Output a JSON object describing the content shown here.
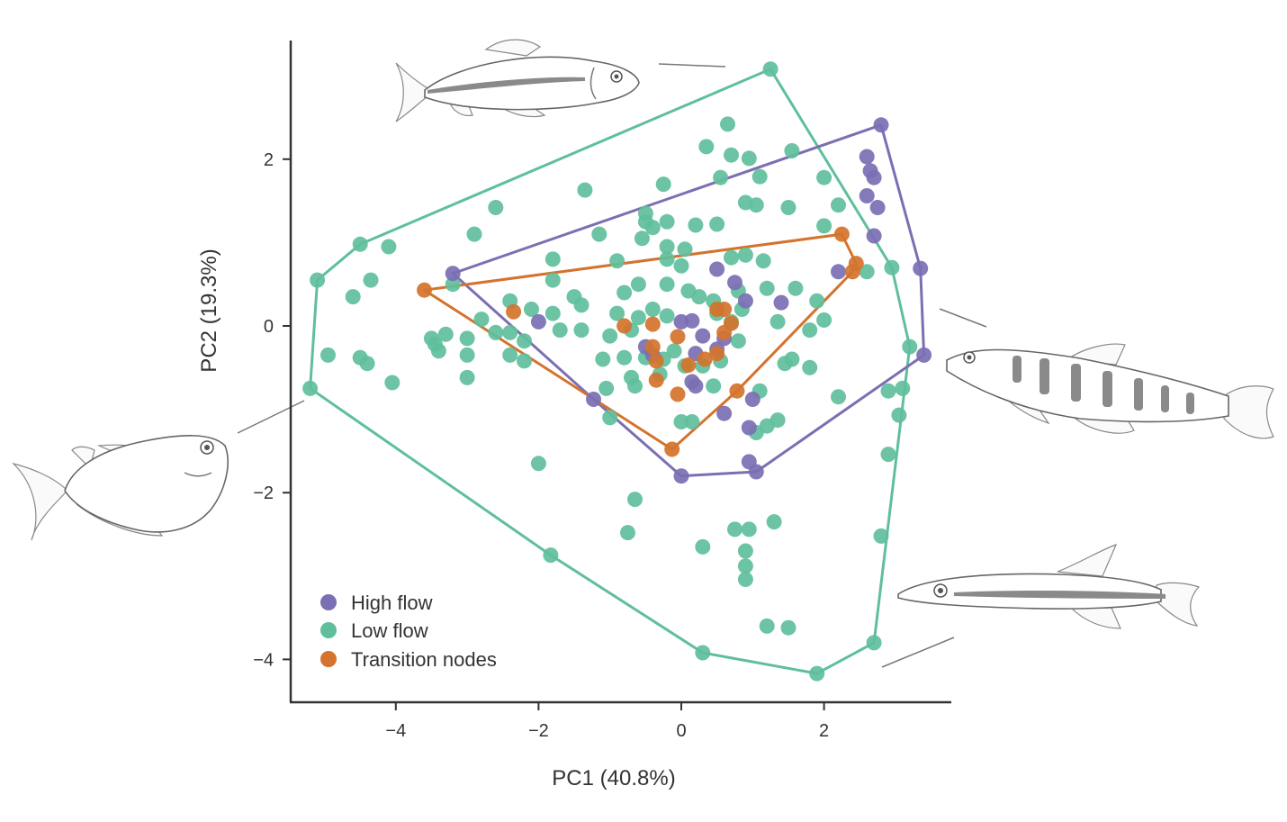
{
  "chart_data": {
    "type": "scatter",
    "xlabel": "PC1 (40.8%)",
    "ylabel": "PC2 (19.3%)",
    "xlim": [
      -5.5,
      3.9
    ],
    "ylim": [
      -4.6,
      3.4
    ],
    "xticks": [
      -4,
      -2,
      0,
      2
    ],
    "yticks": [
      -4,
      -2,
      0,
      2
    ],
    "xtick_labels": [
      "−4",
      "−2",
      "0",
      "2"
    ],
    "ytick_labels": [
      "−4",
      "−2",
      "0",
      "2"
    ],
    "legend_position": "bottom-left",
    "series": [
      {
        "name": "High flow",
        "color": "#7b6fb3",
        "hull": [
          [
            -3.2,
            0.63
          ],
          [
            2.8,
            2.41
          ],
          [
            3.35,
            0.69
          ],
          [
            3.4,
            -0.35
          ],
          [
            1.05,
            -1.75
          ],
          [
            0,
            -1.8
          ],
          [
            -1.23,
            -0.88
          ]
        ],
        "points": [
          [
            -3.2,
            0.63
          ],
          [
            2.8,
            2.41
          ],
          [
            2.6,
            2.03
          ],
          [
            2.65,
            1.86
          ],
          [
            2.7,
            1.78
          ],
          [
            2.6,
            1.56
          ],
          [
            2.75,
            1.42
          ],
          [
            2.7,
            1.08
          ],
          [
            3.35,
            0.69
          ],
          [
            3.4,
            -0.35
          ],
          [
            2.2,
            0.65
          ],
          [
            1.05,
            -1.75
          ],
          [
            0,
            -1.8
          ],
          [
            -1.23,
            -0.88
          ],
          [
            -2.0,
            0.05
          ],
          [
            0.5,
            0.68
          ],
          [
            0.75,
            0.52
          ],
          [
            1.4,
            0.28
          ],
          [
            0.3,
            -0.12
          ],
          [
            0.2,
            -0.33
          ],
          [
            0.15,
            -0.67
          ],
          [
            0.2,
            -0.72
          ],
          [
            1.0,
            -0.88
          ],
          [
            0.95,
            -1.22
          ],
          [
            0.95,
            -1.63
          ],
          [
            0.6,
            -1.05
          ],
          [
            -0.5,
            -0.25
          ],
          [
            -0.4,
            -0.35
          ],
          [
            0.0,
            0.05
          ],
          [
            0.15,
            0.06
          ],
          [
            0.5,
            -0.28
          ],
          [
            0.6,
            -0.15
          ],
          [
            0.9,
            0.3
          ]
        ]
      },
      {
        "name": "Low flow",
        "color": "#5fbf9c",
        "hull": [
          [
            1.25,
            3.08
          ],
          [
            2.95,
            0.7
          ],
          [
            3.2,
            -0.25
          ],
          [
            2.7,
            -3.8
          ],
          [
            1.9,
            -4.17
          ],
          [
            0.3,
            -3.92
          ],
          [
            -1.83,
            -2.75
          ],
          [
            -5.2,
            -0.75
          ],
          [
            -5.1,
            0.55
          ],
          [
            -4.5,
            0.98
          ]
        ],
        "points": [
          [
            1.25,
            3.08
          ],
          [
            0.65,
            2.42
          ],
          [
            0.35,
            2.15
          ],
          [
            0.7,
            2.05
          ],
          [
            0.95,
            2.01
          ],
          [
            1.55,
            2.1
          ],
          [
            2.0,
            1.78
          ],
          [
            0.55,
            1.78
          ],
          [
            1.1,
            1.79
          ],
          [
            -1.35,
            1.63
          ],
          [
            -0.25,
            1.7
          ],
          [
            0.9,
            1.48
          ],
          [
            1.05,
            1.45
          ],
          [
            1.5,
            1.42
          ],
          [
            -0.5,
            1.35
          ],
          [
            -0.5,
            1.25
          ],
          [
            -0.4,
            1.18
          ],
          [
            -0.2,
            1.25
          ],
          [
            0.2,
            1.21
          ],
          [
            0.5,
            1.22
          ],
          [
            2.0,
            1.2
          ],
          [
            2.2,
            1.45
          ],
          [
            -2.6,
            1.42
          ],
          [
            -2.9,
            1.1
          ],
          [
            -1.15,
            1.1
          ],
          [
            -0.55,
            1.05
          ],
          [
            -0.2,
            0.95
          ],
          [
            0.05,
            0.92
          ],
          [
            0.7,
            0.82
          ],
          [
            0.9,
            0.85
          ],
          [
            1.15,
            0.78
          ],
          [
            -4.5,
            0.98
          ],
          [
            -4.1,
            0.95
          ],
          [
            -5.1,
            0.55
          ],
          [
            -4.35,
            0.55
          ],
          [
            -4.6,
            0.35
          ],
          [
            -1.8,
            0.8
          ],
          [
            -0.9,
            0.78
          ],
          [
            -0.2,
            0.8
          ],
          [
            0.0,
            0.72
          ],
          [
            -1.8,
            0.55
          ],
          [
            -1.5,
            0.35
          ],
          [
            -0.8,
            0.4
          ],
          [
            -0.6,
            0.5
          ],
          [
            -0.2,
            0.5
          ],
          [
            0.1,
            0.42
          ],
          [
            0.25,
            0.35
          ],
          [
            0.45,
            0.3
          ],
          [
            0.8,
            0.42
          ],
          [
            1.2,
            0.45
          ],
          [
            1.6,
            0.45
          ],
          [
            -3.2,
            0.5
          ],
          [
            -2.4,
            0.3
          ],
          [
            -2.1,
            0.2
          ],
          [
            -1.8,
            0.15
          ],
          [
            -1.4,
            0.25
          ],
          [
            -0.9,
            0.15
          ],
          [
            -0.6,
            0.1
          ],
          [
            -0.4,
            0.2
          ],
          [
            -0.2,
            0.12
          ],
          [
            2.6,
            0.65
          ],
          [
            2.95,
            0.7
          ],
          [
            1.9,
            0.3
          ],
          [
            2.0,
            0.07
          ],
          [
            1.8,
            -0.05
          ],
          [
            1.35,
            0.05
          ],
          [
            0.85,
            0.2
          ],
          [
            0.7,
            0.05
          ],
          [
            0.5,
            0.15
          ],
          [
            -3.5,
            -0.15
          ],
          [
            -3.3,
            -0.1
          ],
          [
            -3.0,
            -0.15
          ],
          [
            -2.8,
            0.08
          ],
          [
            -2.6,
            -0.08
          ],
          [
            -2.4,
            -0.08
          ],
          [
            -2.2,
            -0.18
          ],
          [
            -1.7,
            -0.05
          ],
          [
            -1.4,
            -0.05
          ],
          [
            -1.0,
            -0.12
          ],
          [
            -0.7,
            -0.05
          ],
          [
            -3.45,
            -0.22
          ],
          [
            -4.5,
            -0.38
          ],
          [
            -4.4,
            -0.45
          ],
          [
            -3.4,
            -0.3
          ],
          [
            -3.0,
            -0.35
          ],
          [
            -2.4,
            -0.35
          ],
          [
            -2.2,
            -0.42
          ],
          [
            -1.1,
            -0.4
          ],
          [
            -0.8,
            -0.38
          ],
          [
            -0.5,
            -0.38
          ],
          [
            -0.25,
            -0.4
          ],
          [
            -0.1,
            -0.3
          ],
          [
            0.05,
            -0.48
          ],
          [
            0.3,
            -0.48
          ],
          [
            0.55,
            -0.42
          ],
          [
            0.8,
            -0.18
          ],
          [
            1.45,
            -0.45
          ],
          [
            1.55,
            -0.4
          ],
          [
            1.8,
            -0.5
          ],
          [
            -4.05,
            -0.68
          ],
          [
            -3.0,
            -0.62
          ],
          [
            -1.05,
            -0.75
          ],
          [
            -0.7,
            -0.62
          ],
          [
            -0.65,
            -0.72
          ],
          [
            -0.3,
            -0.58
          ],
          [
            0.45,
            -0.72
          ],
          [
            1.1,
            -0.78
          ],
          [
            3.1,
            -0.75
          ],
          [
            2.9,
            -0.78
          ],
          [
            3.2,
            -0.25
          ],
          [
            2.2,
            -0.85
          ],
          [
            3.05,
            -1.07
          ],
          [
            -5.2,
            -0.75
          ],
          [
            -4.95,
            -0.35
          ],
          [
            -1.0,
            -1.1
          ],
          [
            0.0,
            -1.15
          ],
          [
            0.15,
            -1.15
          ],
          [
            1.05,
            -1.28
          ],
          [
            1.2,
            -1.2
          ],
          [
            1.35,
            -1.13
          ],
          [
            -2.0,
            -1.65
          ],
          [
            -0.65,
            -2.08
          ],
          [
            -0.75,
            -2.48
          ],
          [
            0.75,
            -2.44
          ],
          [
            0.95,
            -2.44
          ],
          [
            1.3,
            -2.35
          ],
          [
            0.3,
            -2.65
          ],
          [
            0.9,
            -2.7
          ],
          [
            0.9,
            -2.88
          ],
          [
            0.9,
            -3.04
          ],
          [
            2.9,
            -1.54
          ],
          [
            2.8,
            -2.52
          ],
          [
            -1.83,
            -2.75
          ],
          [
            1.2,
            -3.6
          ],
          [
            1.5,
            -3.62
          ],
          [
            0.3,
            -3.92
          ],
          [
            1.9,
            -4.17
          ],
          [
            2.7,
            -3.8
          ]
        ]
      },
      {
        "name": "Transition nodes",
        "color": "#d4732d",
        "hull": [
          [
            -3.6,
            0.43
          ],
          [
            2.25,
            1.1
          ],
          [
            2.45,
            0.75
          ],
          [
            2.4,
            0.65
          ],
          [
            0.78,
            -0.78
          ],
          [
            -0.13,
            -1.48
          ]
        ],
        "points": [
          [
            -3.6,
            0.43
          ],
          [
            2.25,
            1.1
          ],
          [
            2.45,
            0.75
          ],
          [
            2.4,
            0.65
          ],
          [
            0.78,
            -0.78
          ],
          [
            -0.13,
            -1.48
          ],
          [
            -2.35,
            0.17
          ],
          [
            -0.8,
            0.0
          ],
          [
            -0.4,
            0.02
          ],
          [
            -0.05,
            -0.13
          ],
          [
            0.5,
            0.2
          ],
          [
            0.6,
            0.2
          ],
          [
            0.7,
            0.03
          ],
          [
            0.6,
            -0.08
          ],
          [
            -0.4,
            -0.25
          ],
          [
            -0.35,
            -0.42
          ],
          [
            0.1,
            -0.47
          ],
          [
            0.33,
            -0.4
          ],
          [
            0.5,
            -0.33
          ],
          [
            -0.35,
            -0.65
          ],
          [
            -0.05,
            -0.82
          ]
        ]
      }
    ]
  }
}
